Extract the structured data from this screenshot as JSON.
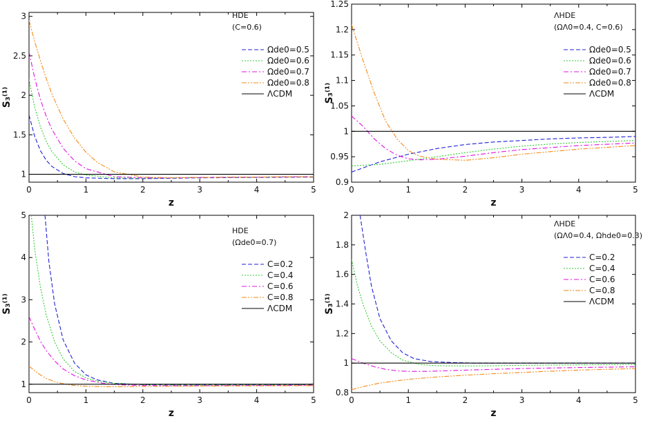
{
  "chart_data": [
    {
      "type": "line",
      "panel": "top-left",
      "annotation": [
        "HDE",
        "(C=0.6)"
      ],
      "xlabel": "z",
      "ylabel": "S₃⁽¹⁾",
      "xlim": [
        0,
        5
      ],
      "ylim": [
        0.9,
        3.05
      ],
      "xticks": [
        0,
        1,
        2,
        3,
        4,
        5
      ],
      "yticks": [
        1,
        1.5,
        2,
        2.5,
        3
      ],
      "ytick_labels": [
        "1",
        "1.5",
        "2",
        "2.5",
        "3"
      ],
      "legend_position": "right-upper",
      "series": [
        {
          "name": "Ωde0=0.5",
          "color": "#1f1fd6",
          "dash": "dashed",
          "x": [
            0,
            0.1,
            0.2,
            0.3,
            0.4,
            0.6,
            0.8,
            1.0,
            1.5,
            2,
            2.5,
            3,
            4,
            5
          ],
          "y": [
            1.75,
            1.48,
            1.3,
            1.18,
            1.1,
            1.01,
            0.97,
            0.955,
            0.945,
            0.945,
            0.95,
            0.955,
            0.96,
            0.965
          ]
        },
        {
          "name": "Ωde0=0.6",
          "color": "#2ecc2e",
          "dash": "dotted",
          "x": [
            0,
            0.1,
            0.2,
            0.3,
            0.4,
            0.6,
            0.8,
            1.0,
            1.5,
            2,
            2.5,
            3,
            4,
            5
          ],
          "y": [
            2.2,
            1.85,
            1.6,
            1.42,
            1.29,
            1.12,
            1.03,
            0.99,
            0.955,
            0.95,
            0.955,
            0.96,
            0.965,
            0.97
          ]
        },
        {
          "name": "Ωde0=0.7",
          "color": "#e010e0",
          "dash": "dashdot",
          "x": [
            0,
            0.1,
            0.2,
            0.3,
            0.4,
            0.6,
            0.8,
            1.0,
            1.5,
            2,
            2.5,
            3,
            4,
            5
          ],
          "y": [
            2.55,
            2.22,
            1.95,
            1.74,
            1.57,
            1.33,
            1.17,
            1.07,
            0.97,
            0.955,
            0.955,
            0.96,
            0.965,
            0.97
          ]
        },
        {
          "name": "Ωde0=0.8",
          "color": "#f28a1a",
          "dash": "dashdotdot",
          "x": [
            0,
            0.1,
            0.2,
            0.3,
            0.4,
            0.6,
            0.8,
            1.0,
            1.2,
            1.5,
            2,
            2.5,
            3,
            4,
            5
          ],
          "y": [
            2.95,
            2.68,
            2.44,
            2.22,
            2.02,
            1.7,
            1.46,
            1.28,
            1.15,
            1.03,
            0.965,
            0.955,
            0.96,
            0.965,
            0.97
          ]
        },
        {
          "name": "ΛCDM",
          "color": "#000000",
          "dash": "solid",
          "x": [
            0,
            5
          ],
          "y": [
            1,
            1
          ]
        }
      ]
    },
    {
      "type": "line",
      "panel": "top-right",
      "annotation": [
        "ΛHDE",
        "(ΩΛ0=0.4, C=0.6)"
      ],
      "xlabel": "z",
      "ylabel": "S₃⁽¹⁾",
      "xlim": [
        0,
        5
      ],
      "ylim": [
        0.9,
        1.25
      ],
      "xticks": [
        0,
        1,
        2,
        3,
        4,
        5
      ],
      "yticks": [
        0.9,
        0.95,
        1,
        1.05,
        1.1,
        1.15,
        1.2,
        1.25
      ],
      "ytick_labels": [
        "0.9",
        "0.95",
        "1",
        "1.05",
        "1.1",
        "1.15",
        "1.2",
        "1.25"
      ],
      "legend_position": "right-upper",
      "series": [
        {
          "name": "Ωde0=0.5",
          "color": "#1f1fd6",
          "dash": "dashed",
          "x": [
            0,
            0.25,
            0.5,
            1,
            1.5,
            2,
            2.5,
            3,
            3.5,
            4,
            4.5,
            5
          ],
          "y": [
            0.92,
            0.93,
            0.94,
            0.955,
            0.966,
            0.974,
            0.979,
            0.982,
            0.985,
            0.987,
            0.988,
            0.99
          ]
        },
        {
          "name": "Ωde0=0.6",
          "color": "#2ecc2e",
          "dash": "dotted",
          "x": [
            0,
            0.5,
            1,
            1.5,
            2,
            2.5,
            3,
            3.5,
            4,
            4.5,
            5
          ],
          "y": [
            0.932,
            0.935,
            0.942,
            0.95,
            0.958,
            0.965,
            0.971,
            0.975,
            0.978,
            0.98,
            0.982
          ]
        },
        {
          "name": "Ωde0=0.7",
          "color": "#e010e0",
          "dash": "dashdot",
          "x": [
            0,
            0.2,
            0.4,
            0.6,
            0.8,
            1.0,
            1.2,
            1.5,
            2,
            2.5,
            3,
            4,
            5
          ],
          "y": [
            1.03,
            1.01,
            0.985,
            0.966,
            0.953,
            0.946,
            0.944,
            0.945,
            0.951,
            0.958,
            0.964,
            0.972,
            0.977
          ]
        },
        {
          "name": "Ωde0=0.8",
          "color": "#f28a1a",
          "dash": "dashdotdot",
          "x": [
            0,
            0.2,
            0.4,
            0.6,
            0.8,
            1.0,
            1.2,
            1.5,
            2,
            2.5,
            3,
            4,
            5
          ],
          "y": [
            1.21,
            1.14,
            1.075,
            1.02,
            0.985,
            0.962,
            0.951,
            0.945,
            0.943,
            0.948,
            0.955,
            0.965,
            0.972
          ]
        },
        {
          "name": "ΛCDM",
          "color": "#000000",
          "dash": "solid",
          "x": [
            0,
            5
          ],
          "y": [
            1,
            1
          ]
        }
      ]
    },
    {
      "type": "line",
      "panel": "bottom-left",
      "annotation": [
        "HDE",
        "(Ωde0=0.7)"
      ],
      "xlabel": "z",
      "ylabel": "S₃⁽¹⁾",
      "xlim": [
        0,
        5
      ],
      "ylim": [
        0.8,
        5
      ],
      "xticks": [
        0,
        1,
        2,
        3,
        4,
        5
      ],
      "yticks": [
        1,
        2,
        3,
        4,
        5
      ],
      "ytick_labels": [
        "1",
        "2",
        "3",
        "4",
        "5"
      ],
      "legend_position": "right-middle",
      "series": [
        {
          "name": "C=0.2",
          "color": "#1f1fd6",
          "dash": "dashed",
          "x": [
            0.28,
            0.35,
            0.45,
            0.6,
            0.8,
            1.0,
            1.2,
            1.5,
            2,
            2.5,
            3,
            4,
            5
          ],
          "y": [
            5.0,
            3.9,
            2.9,
            2.05,
            1.5,
            1.22,
            1.1,
            1.02,
            0.99,
            0.985,
            0.985,
            0.985,
            0.99
          ]
        },
        {
          "name": "C=0.4",
          "color": "#2ecc2e",
          "dash": "dotted",
          "x": [
            0.04,
            0.1,
            0.2,
            0.3,
            0.45,
            0.6,
            0.8,
            1.0,
            1.2,
            1.5,
            2,
            2.5,
            3,
            4,
            5
          ],
          "y": [
            5.0,
            4.2,
            3.3,
            2.65,
            2.0,
            1.6,
            1.3,
            1.15,
            1.07,
            1.02,
            0.99,
            0.985,
            0.985,
            0.985,
            0.99
          ]
        },
        {
          "name": "C=0.6",
          "color": "#e010e0",
          "dash": "dashdot",
          "x": [
            0,
            0.1,
            0.2,
            0.3,
            0.45,
            0.6,
            0.8,
            1.0,
            1.3,
            1.6,
            2,
            2.5,
            3,
            4,
            5
          ],
          "y": [
            2.6,
            2.3,
            2.02,
            1.8,
            1.55,
            1.36,
            1.2,
            1.1,
            1.02,
            0.985,
            0.97,
            0.965,
            0.965,
            0.97,
            0.975
          ]
        },
        {
          "name": "C=0.8",
          "color": "#f28a1a",
          "dash": "dashdotdot",
          "x": [
            0,
            0.1,
            0.2,
            0.3,
            0.45,
            0.6,
            0.8,
            1.0,
            1.3,
            1.6,
            2,
            2.5,
            3,
            4,
            5
          ],
          "y": [
            1.43,
            1.32,
            1.22,
            1.14,
            1.06,
            1.01,
            0.97,
            0.95,
            0.94,
            0.94,
            0.945,
            0.95,
            0.955,
            0.96,
            0.965
          ]
        },
        {
          "name": "ΛCDM",
          "color": "#000000",
          "dash": "solid",
          "x": [
            0,
            5
          ],
          "y": [
            1,
            1
          ]
        }
      ]
    },
    {
      "type": "line",
      "panel": "bottom-right",
      "annotation": [
        "ΛHDE",
        "(ΩΛ0=0.4, Ωhde0=0.3)"
      ],
      "xlabel": "z",
      "ylabel": "S₃⁽¹⁾",
      "xlim": [
        0,
        5
      ],
      "ylim": [
        0.8,
        2
      ],
      "xticks": [
        0,
        1,
        2,
        3,
        4,
        5
      ],
      "yticks": [
        0.8,
        1,
        1.2,
        1.4,
        1.6,
        1.8,
        2
      ],
      "ytick_labels": [
        "0.8",
        "1",
        "1.2",
        "1.4",
        "1.6",
        "1.8",
        "2"
      ],
      "legend_position": "right-middle",
      "series": [
        {
          "name": "C=0.2",
          "color": "#1f1fd6",
          "dash": "dashed",
          "x": [
            0.15,
            0.25,
            0.35,
            0.5,
            0.7,
            0.9,
            1.1,
            1.4,
            1.8,
            2.2,
            3,
            4,
            5
          ],
          "y": [
            2.0,
            1.75,
            1.52,
            1.3,
            1.15,
            1.07,
            1.03,
            1.01,
            1.003,
            1.0,
            1.0,
            1.0,
            1.0
          ]
        },
        {
          "name": "C=0.4",
          "color": "#2ecc2e",
          "dash": "dotted",
          "x": [
            0,
            0.1,
            0.2,
            0.35,
            0.5,
            0.7,
            0.9,
            1.2,
            1.5,
            2,
            2.5,
            3,
            4,
            5
          ],
          "y": [
            1.7,
            1.53,
            1.4,
            1.25,
            1.15,
            1.07,
            1.02,
            0.99,
            0.982,
            0.98,
            0.982,
            0.985,
            0.988,
            0.99
          ]
        },
        {
          "name": "C=0.6",
          "color": "#e010e0",
          "dash": "dashdot",
          "x": [
            0,
            0.2,
            0.4,
            0.6,
            0.8,
            1.0,
            1.3,
            1.6,
            2,
            2.5,
            3,
            4,
            5
          ],
          "y": [
            1.03,
            1.0,
            0.975,
            0.958,
            0.948,
            0.944,
            0.944,
            0.947,
            0.952,
            0.958,
            0.963,
            0.97,
            0.975
          ]
        },
        {
          "name": "C=0.8",
          "color": "#f28a1a",
          "dash": "dashdotdot",
          "x": [
            0,
            0.25,
            0.5,
            0.75,
            1.0,
            1.5,
            2,
            2.5,
            3,
            3.5,
            4,
            4.5,
            5
          ],
          "y": [
            0.82,
            0.845,
            0.865,
            0.878,
            0.89,
            0.906,
            0.918,
            0.928,
            0.937,
            0.945,
            0.952,
            0.958,
            0.963
          ]
        },
        {
          "name": "ΛCDM",
          "color": "#000000",
          "dash": "solid",
          "x": [
            0,
            5
          ],
          "y": [
            1,
            1
          ]
        }
      ]
    }
  ]
}
